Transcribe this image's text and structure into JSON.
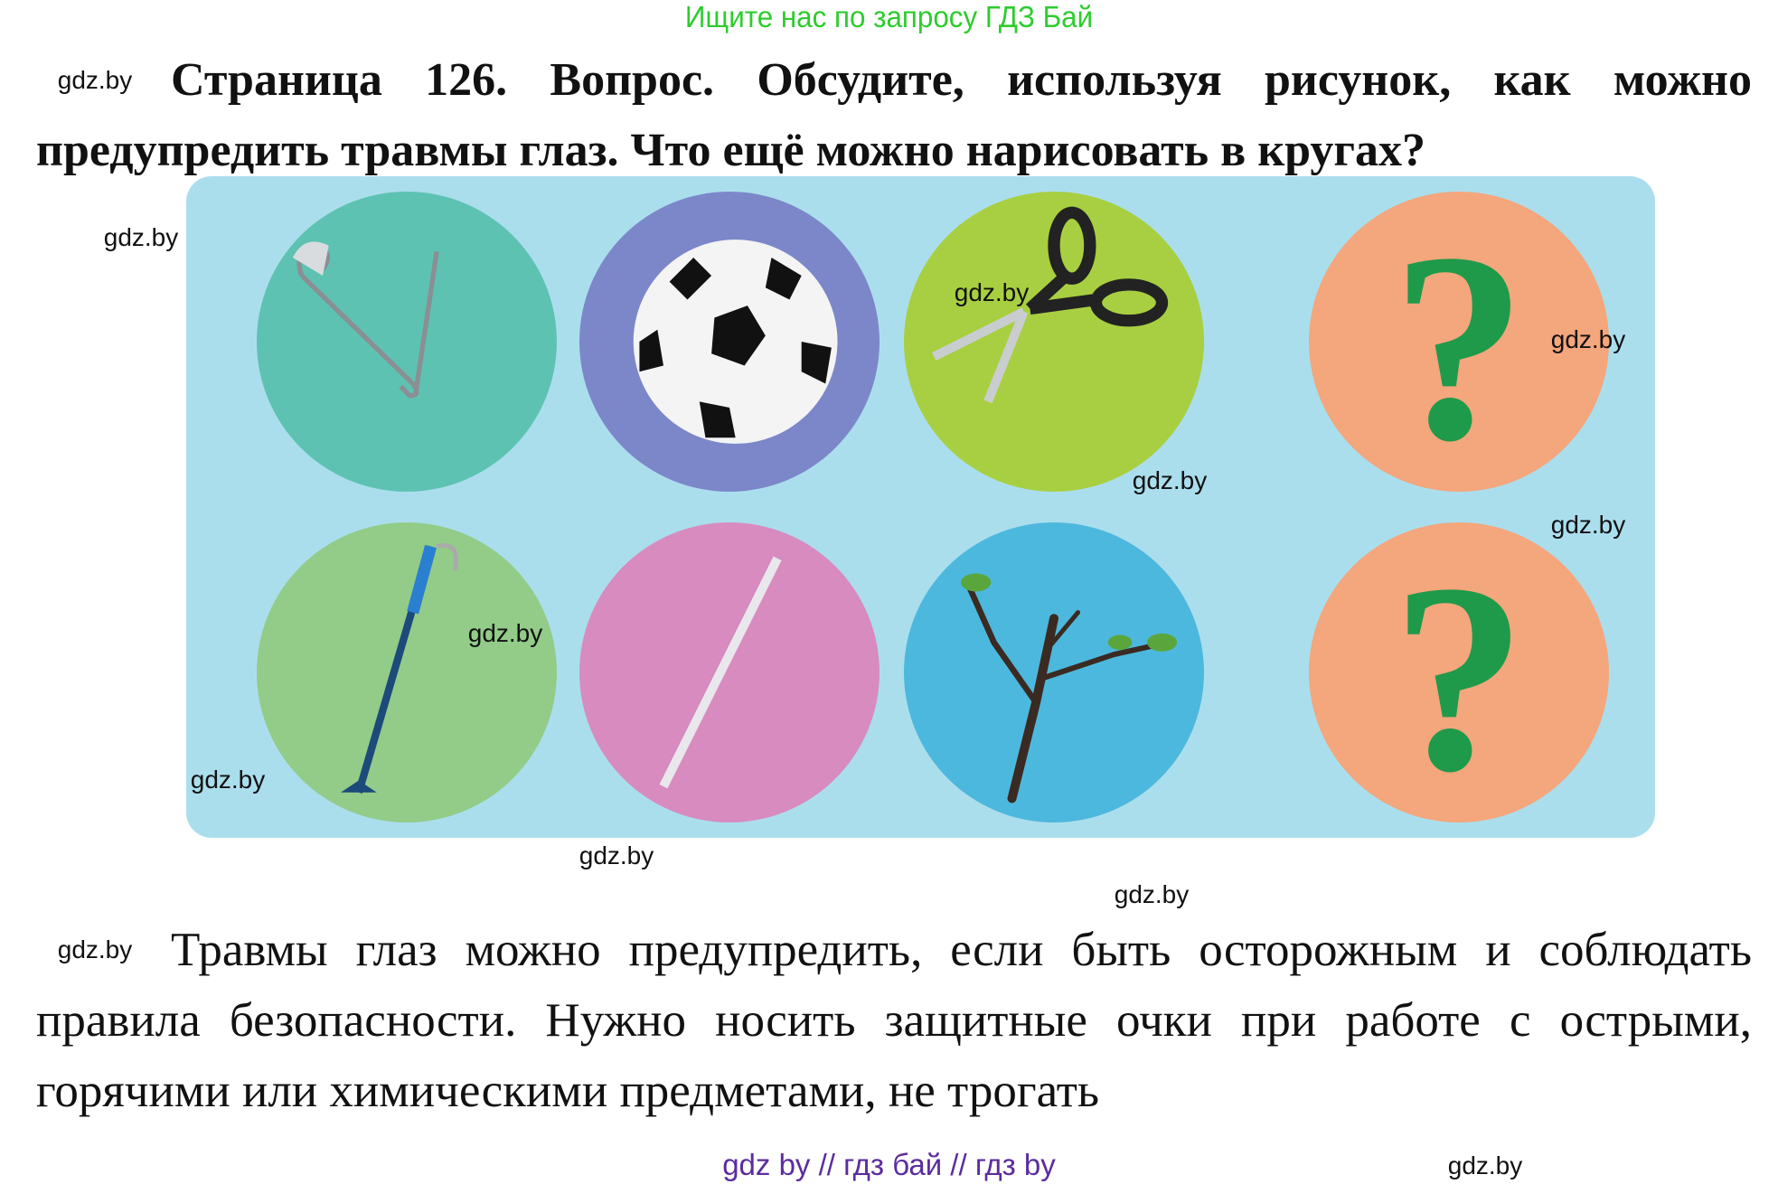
{
  "header_ad": "Ищите нас по запросу ГДЗ Бай",
  "title": "Страница 126. Вопрос. Обсудите, используя рисунок, как можно предупредить травмы глаз. Что ещё можно нарисовать в кругах?",
  "illustration": {
    "circles": [
      {
        "icon": "safety-pin-icon",
        "color": "#5ec2b2"
      },
      {
        "icon": "soccer-ball-icon",
        "color": "#7c87c9"
      },
      {
        "icon": "scissors-icon",
        "color": "#a8cf41"
      },
      {
        "icon": "question-mark-icon",
        "color": "#f4a67c",
        "symbol": "?"
      },
      {
        "icon": "hook-stick-icon",
        "color": "#92cc88"
      },
      {
        "icon": "knitting-needle-icon",
        "color": "#d88bbf"
      },
      {
        "icon": "tree-branch-icon",
        "color": "#4db8dd"
      },
      {
        "icon": "question-mark-icon",
        "color": "#f4a67c",
        "symbol": "?"
      }
    ],
    "background": "#abdeed",
    "question_color": "#1e9a4a"
  },
  "watermark": "gdz.by",
  "answer": "Травмы глаз можно предупредить, если быть осторожным и соблюдать правила безопасности. Нужно носить защитные очки при работе с острыми, горячими или химическими предметами, не трогать",
  "footer": "gdz by  //  гдз бай  //  гдз by"
}
